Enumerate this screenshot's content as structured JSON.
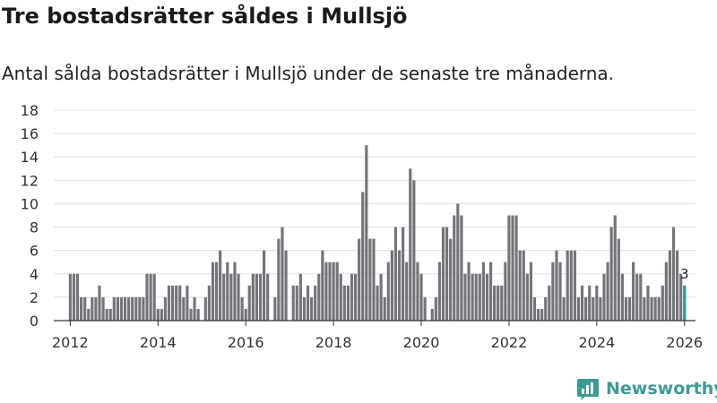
{
  "header": {
    "title": "Tre bostadsrätter såldes i Mullsjö",
    "subtitle": "Antal sålda bostadsrätter i Mullsjö under de senaste tre månaderna."
  },
  "brand": {
    "name": "Newsworthy",
    "logo_icon": "bar-chart-logo-icon"
  },
  "colors": {
    "bar": "#75747a",
    "highlight": "#2e9590",
    "grid": "#e1e1e1",
    "brand": "#3d9b95"
  },
  "chart_data": {
    "type": "bar",
    "title": "Tre bostadsrätter såldes i Mullsjö",
    "subtitle": "Antal sålda bostadsrätter i Mullsjö under de senaste tre månaderna.",
    "xlabel": "",
    "ylabel": "",
    "unit": "antal sålda bostadsrätter per månad (rullande tre månader)",
    "x_start": "2012-01",
    "x_end": "2026-01",
    "xlim": [
      2011.625,
      2026.25
    ],
    "ylim": [
      0,
      18
    ],
    "y_ticks": [
      0,
      2,
      4,
      6,
      8,
      10,
      12,
      14,
      16,
      18
    ],
    "x_ticks": [
      2012,
      2014,
      2016,
      2018,
      2020,
      2022,
      2024,
      2026
    ],
    "grid": true,
    "highlight": {
      "index": 168,
      "label": "3"
    },
    "values": [
      4,
      4,
      4,
      2,
      2,
      1,
      2,
      2,
      3,
      2,
      1,
      1,
      2,
      2,
      2,
      2,
      2,
      2,
      2,
      2,
      2,
      4,
      4,
      4,
      1,
      1,
      2,
      3,
      3,
      3,
      3,
      2,
      3,
      1,
      2,
      1,
      0,
      2,
      3,
      5,
      5,
      6,
      4,
      5,
      4,
      5,
      4,
      2,
      1,
      3,
      4,
      4,
      4,
      6,
      4,
      0,
      2,
      7,
      8,
      6,
      0,
      3,
      3,
      4,
      2,
      3,
      2,
      3,
      4,
      6,
      5,
      5,
      5,
      5,
      4,
      3,
      3,
      4,
      4,
      7,
      11,
      15,
      7,
      7,
      3,
      4,
      2,
      5,
      6,
      8,
      6,
      8,
      5,
      13,
      12,
      5,
      4,
      2,
      0,
      1,
      2,
      5,
      8,
      8,
      7,
      9,
      10,
      9,
      4,
      5,
      4,
      4,
      4,
      5,
      4,
      5,
      3,
      3,
      3,
      5,
      9,
      9,
      9,
      6,
      6,
      4,
      5,
      2,
      1,
      1,
      2,
      3,
      5,
      6,
      5,
      2,
      6,
      6,
      6,
      2,
      3,
      2,
      3,
      2,
      3,
      2,
      4,
      5,
      8,
      9,
      7,
      4,
      2,
      2,
      5,
      4,
      4,
      2,
      3,
      2,
      2,
      2,
      3,
      5,
      6,
      8,
      6,
      4,
      3
    ]
  }
}
